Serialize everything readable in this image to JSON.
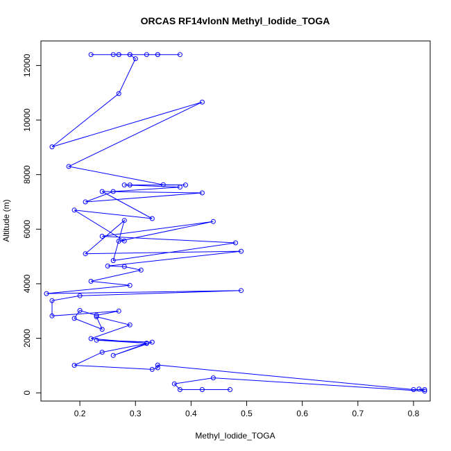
{
  "chart_data": {
    "type": "line",
    "title": "ORCAS RF14vlonN Methyl_Iodide_TOGA",
    "xlabel": "Methyl_Iodide_TOGA",
    "ylabel": "Altitude (m)",
    "xlim": [
      0.13,
      0.83
    ],
    "ylim": [
      -300,
      12900
    ],
    "x_ticks": [
      0.2,
      0.3,
      0.4,
      0.5,
      0.6,
      0.7,
      0.8
    ],
    "x_tick_labels": [
      "0.2",
      "0.3",
      "0.4",
      "0.5",
      "0.6",
      "0.7",
      "0.8"
    ],
    "y_ticks": [
      0,
      2000,
      4000,
      6000,
      8000,
      10000,
      12000
    ],
    "y_tick_labels": [
      "0",
      "2000",
      "4000",
      "6000",
      "8000",
      "10000",
      "12000"
    ],
    "grid": false,
    "legend": "none",
    "series_color": "#0000ff",
    "marker": "open-circle",
    "series": [
      {
        "points": [
          [
            0.22,
            12400
          ],
          [
            0.26,
            12400
          ],
          [
            0.27,
            12400
          ],
          [
            0.29,
            12400
          ],
          [
            0.32,
            12400
          ],
          [
            0.34,
            12400
          ],
          [
            0.38,
            12400
          ],
          [
            0.34,
            12400
          ],
          [
            0.27,
            12400
          ],
          [
            0.29,
            12400
          ],
          [
            0.3,
            12250
          ],
          [
            0.27,
            10970
          ],
          [
            0.15,
            9020
          ],
          [
            0.42,
            10660
          ],
          [
            0.18,
            8300
          ],
          [
            0.35,
            7630
          ],
          [
            0.39,
            7620
          ],
          [
            0.29,
            7620
          ],
          [
            0.28,
            7620
          ],
          [
            0.38,
            7540
          ],
          [
            0.26,
            7380
          ],
          [
            0.21,
            7000
          ],
          [
            0.42,
            7330
          ],
          [
            0.24,
            7380
          ],
          [
            0.33,
            6390
          ],
          [
            0.19,
            6700
          ],
          [
            0.28,
            5570
          ],
          [
            0.27,
            5560
          ],
          [
            0.44,
            6280
          ],
          [
            0.24,
            5740
          ],
          [
            0.48,
            5500
          ],
          [
            0.26,
            4850
          ],
          [
            0.28,
            6320
          ],
          [
            0.21,
            5100
          ],
          [
            0.49,
            5190
          ],
          [
            0.25,
            4650
          ],
          [
            0.28,
            4630
          ],
          [
            0.31,
            4500
          ],
          [
            0.22,
            4090
          ],
          [
            0.29,
            3940
          ],
          [
            0.14,
            3640
          ],
          [
            0.49,
            3750
          ],
          [
            0.2,
            3560
          ],
          [
            0.15,
            3380
          ],
          [
            0.15,
            2820
          ],
          [
            0.27,
            3000
          ],
          [
            0.23,
            2840
          ],
          [
            0.2,
            3020
          ],
          [
            0.19,
            2730
          ],
          [
            0.24,
            2330
          ],
          [
            0.23,
            2790
          ],
          [
            0.29,
            2490
          ],
          [
            0.22,
            1990
          ],
          [
            0.32,
            1820
          ],
          [
            0.23,
            1930
          ],
          [
            0.33,
            1860
          ],
          [
            0.26,
            1370
          ],
          [
            0.32,
            1810
          ],
          [
            0.24,
            1490
          ],
          [
            0.19,
            1010
          ],
          [
            0.33,
            860
          ],
          [
            0.34,
            920
          ],
          [
            0.34,
            1020
          ],
          [
            0.8,
            120
          ],
          [
            0.82,
            120
          ],
          [
            0.81,
            140
          ],
          [
            0.82,
            60
          ],
          [
            0.44,
            550
          ],
          [
            0.37,
            330
          ],
          [
            0.38,
            120
          ],
          [
            0.42,
            120
          ],
          [
            0.47,
            120
          ]
        ]
      }
    ]
  }
}
